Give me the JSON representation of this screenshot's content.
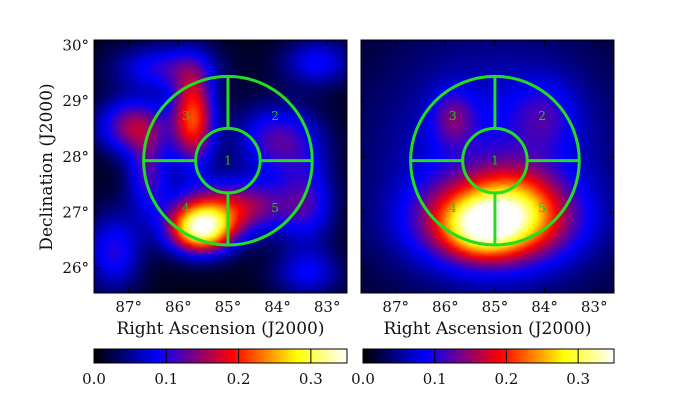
{
  "chart_data": {
    "type": "heatmap",
    "x_axis_label": "Right Ascension (J2000)",
    "y_axis_label": "Declination (J2000)",
    "x_ticks": [
      "87°",
      "86°",
      "85°",
      "84°",
      "83°"
    ],
    "x_tick_values": [
      87,
      86,
      85,
      84,
      83
    ],
    "y_ticks": [
      "30°",
      "29°",
      "28°",
      "27°",
      "26°"
    ],
    "y_tick_values": [
      30,
      29,
      28,
      27,
      26
    ],
    "xlim": [
      87.7,
      82.6
    ],
    "ylim": [
      25.55,
      30.1
    ],
    "colorbar": {
      "ticks": [
        "0.0",
        "0.1",
        "0.2",
        "0.3"
      ],
      "tick_values": [
        0.0,
        0.1,
        0.2,
        0.3
      ],
      "range": [
        0.0,
        0.35
      ],
      "colormap": [
        "#000000",
        "#0000ff",
        "#ff0000",
        "#ffff00",
        "#ffffff"
      ]
    },
    "region_geometry": {
      "center_ra": 85.0,
      "center_dec": 27.93,
      "inner_radius_deg": 0.65,
      "outer_radius_deg": 1.7
    },
    "region_labels": [
      {
        "id": "1",
        "ra": 85.0,
        "dec": 27.93
      },
      {
        "id": "2",
        "ra": 84.05,
        "dec": 28.73
      },
      {
        "id": "3",
        "ra": 85.85,
        "dec": 28.73
      },
      {
        "id": "4",
        "ra": 85.85,
        "dec": 27.08
      },
      {
        "id": "5",
        "ra": 84.05,
        "dec": 27.08
      }
    ],
    "region_color": "#22dd22",
    "panels": [
      {
        "name": "left",
        "blobs": [
          {
            "ra": 85.55,
            "dec": 26.7,
            "sx": 0.45,
            "sy": 0.3,
            "a": 0.3
          },
          {
            "ra": 84.85,
            "dec": 27.1,
            "sx": 0.8,
            "sy": 0.35,
            "a": 0.15
          },
          {
            "ra": 85.7,
            "dec": 28.7,
            "sx": 0.3,
            "sy": 0.6,
            "a": 0.2
          },
          {
            "ra": 86.9,
            "dec": 28.55,
            "sx": 0.5,
            "sy": 0.35,
            "a": 0.14
          },
          {
            "ra": 86.6,
            "dec": 27.7,
            "sx": 0.3,
            "sy": 0.5,
            "a": 0.1
          },
          {
            "ra": 84.0,
            "dec": 28.3,
            "sx": 0.6,
            "sy": 0.45,
            "a": 0.11
          },
          {
            "ra": 83.4,
            "dec": 27.2,
            "sx": 0.4,
            "sy": 0.6,
            "a": 0.08
          },
          {
            "ra": 86.3,
            "dec": 29.6,
            "sx": 0.7,
            "sy": 0.3,
            "a": 0.09
          },
          {
            "ra": 83.2,
            "dec": 29.7,
            "sx": 0.5,
            "sy": 0.3,
            "a": 0.08
          },
          {
            "ra": 87.3,
            "dec": 26.3,
            "sx": 0.4,
            "sy": 0.5,
            "a": 0.09
          },
          {
            "ra": 83.4,
            "dec": 25.9,
            "sx": 0.5,
            "sy": 0.3,
            "a": 0.07
          }
        ]
      },
      {
        "name": "right",
        "blobs": [
          {
            "ra": 85.0,
            "dec": 27.85,
            "sx": 1.8,
            "sy": 1.7,
            "a": 0.08
          },
          {
            "ra": 85.0,
            "dec": 26.85,
            "sx": 1.0,
            "sy": 0.5,
            "a": 0.22
          },
          {
            "ra": 85.3,
            "dec": 26.7,
            "sx": 0.5,
            "sy": 0.35,
            "a": 0.1
          },
          {
            "ra": 84.6,
            "dec": 27.2,
            "sx": 0.6,
            "sy": 0.5,
            "a": 0.07
          },
          {
            "ra": 85.85,
            "dec": 28.7,
            "sx": 0.3,
            "sy": 0.35,
            "a": 0.07
          },
          {
            "ra": 84.0,
            "dec": 28.75,
            "sx": 0.45,
            "sy": 0.45,
            "a": 0.05
          }
        ]
      }
    ]
  }
}
